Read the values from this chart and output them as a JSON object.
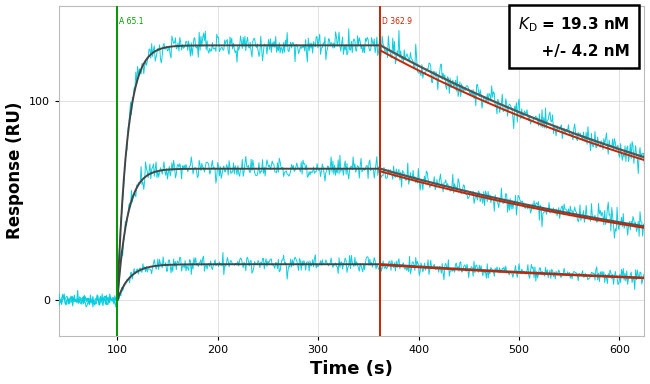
{
  "background_color": "#ffffff",
  "plot_bg_color": "#ffffff",
  "xlabel": "Time (s)",
  "ylabel": "Response (RU)",
  "xlim": [
    42,
    625
  ],
  "ylim": [
    -18,
    148
  ],
  "xticks": [
    100,
    200,
    300,
    400,
    500,
    600
  ],
  "yticks": [
    0,
    100
  ],
  "assoc_start": 100,
  "dissoc_start": 362,
  "green_line_color": "#009900",
  "red_line_color": "#cc2200",
  "fit_color_assoc": "#444444",
  "fit_color_dissoc_red": "#cc2200",
  "fit_color_dissoc_gray": "#555555",
  "data_color": "#00ccdd",
  "concentrations": [
    {
      "rmax": 128,
      "decay_rate": 0.0022,
      "assoc_rate": 0.1,
      "noise": 3.2
    },
    {
      "rmax": 66,
      "decay_rate": 0.0022,
      "assoc_rate": 0.1,
      "noise": 2.8
    },
    {
      "rmax": 18,
      "decay_rate": 0.0018,
      "assoc_rate": 0.08,
      "noise": 2.0
    }
  ],
  "pre_assoc_noise": 1.5,
  "grid_color": "#cccccc",
  "grid_alpha": 0.8,
  "tick_label_size": 8,
  "axis_label_size": 12,
  "xlabel_size": 13,
  "assoc_label": "A 65.1",
  "dissoc_label": "D 362.9"
}
